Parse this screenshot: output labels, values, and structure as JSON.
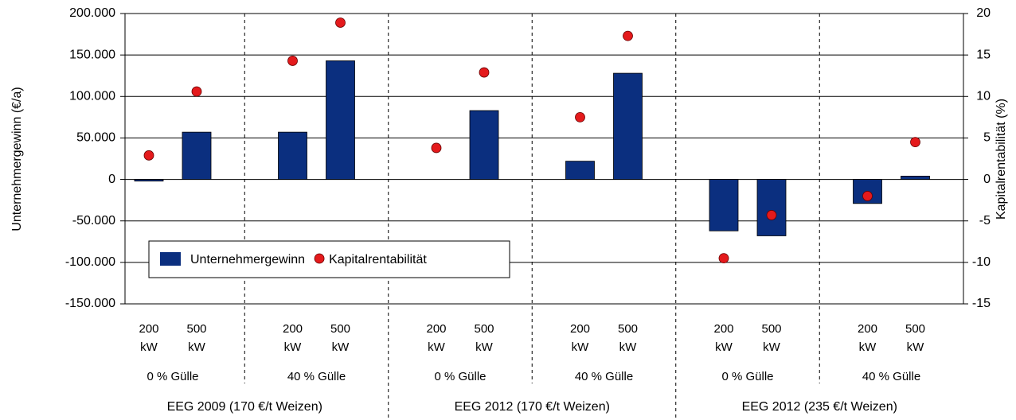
{
  "chart_data": {
    "type": "bar+scatter",
    "ylabel": "Unternehmergewinn (€/a)",
    "y2label": "Kapitalrentabilität (%)",
    "categories": [
      "200 kW",
      "500 kW",
      "200 kW",
      "500 kW",
      "200 kW",
      "500 kW",
      "200 kW",
      "500 kW",
      "200 kW",
      "500 kW",
      "200 kW",
      "500 kW"
    ],
    "subgroups": [
      "0 % Gülle",
      "40 % Gülle",
      "0 % Gülle",
      "40 % Gülle",
      "0 % Gülle",
      "40 % Gülle"
    ],
    "groups": [
      "EEG 2009 (170 €/t Weizen)",
      "EEG 2012 (170 €/t Weizen)",
      "EEG 2012 (235 €/t Weizen)"
    ],
    "series": [
      {
        "name": "Unternehmergewinn",
        "color": "#0b2f7f",
        "type": "bar",
        "values": [
          -2000,
          57000,
          57000,
          143000,
          0,
          83000,
          22000,
          128000,
          -62000,
          -68000,
          -29000,
          4000
        ]
      },
      {
        "name": "Kapitalrentabilität",
        "color": "#e41a1c",
        "type": "scatter",
        "axis": "y2",
        "values": [
          2.9,
          10.6,
          14.3,
          18.9,
          3.8,
          12.9,
          7.5,
          17.3,
          -9.5,
          -4.3,
          -2.0,
          4.5
        ]
      }
    ],
    "ylim": [
      -150000,
      200000
    ],
    "yticks": [
      {
        "value": -150000,
        "label": "-150.000"
      },
      {
        "value": -100000,
        "label": "-100.000"
      },
      {
        "value": -50000,
        "label": "-50.000"
      },
      0,
      {
        "value": 50000,
        "label": "50.000"
      },
      {
        "value": 100000,
        "label": "100.000"
      },
      {
        "value": 150000,
        "label": "150.000"
      },
      {
        "value": 200000,
        "label": "200.000"
      }
    ],
    "y2lim": [
      -15,
      20
    ],
    "y2ticks": [
      -15,
      -10,
      -5,
      0,
      5,
      10,
      15,
      20
    ],
    "grid": true,
    "legend": "lower left"
  }
}
